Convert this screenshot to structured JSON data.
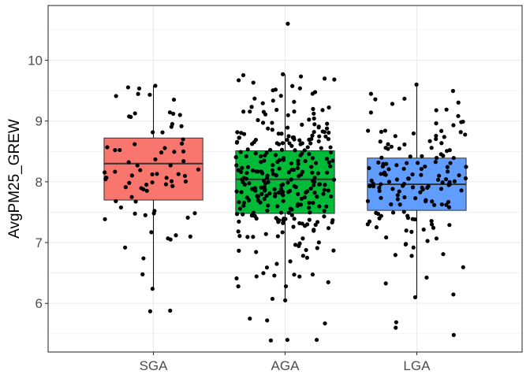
{
  "chart_data": {
    "type": "boxplot",
    "title": "",
    "xlabel": "",
    "ylabel": "AvgPM25_GREW",
    "ylim": [
      5.2,
      10.9
    ],
    "y_ticks": [
      6,
      7,
      8,
      9,
      10
    ],
    "categories": [
      "SGA",
      "AGA",
      "LGA"
    ],
    "grid": true,
    "legend": "none",
    "jitter_points": true,
    "series": [
      {
        "category": "SGA",
        "color": "#F8766D",
        "min": 6.24,
        "q1": 7.7,
        "median": 8.3,
        "q3": 8.72,
        "max": 9.58,
        "outliers": [
          5.87,
          5.88
        ]
      },
      {
        "category": "AGA",
        "color": "#00BA38",
        "min": 6.05,
        "q1": 7.48,
        "median": 8.04,
        "q3": 8.51,
        "max": 9.77,
        "outliers": [
          10.6,
          5.75,
          5.72,
          5.67,
          5.4,
          5.4,
          5.39
        ]
      },
      {
        "category": "LGA",
        "color": "#619CFF",
        "min": 6.1,
        "q1": 7.53,
        "median": 7.96,
        "q3": 8.39,
        "max": 9.6,
        "outliers": [
          5.69,
          5.6,
          5.48
        ]
      }
    ]
  }
}
